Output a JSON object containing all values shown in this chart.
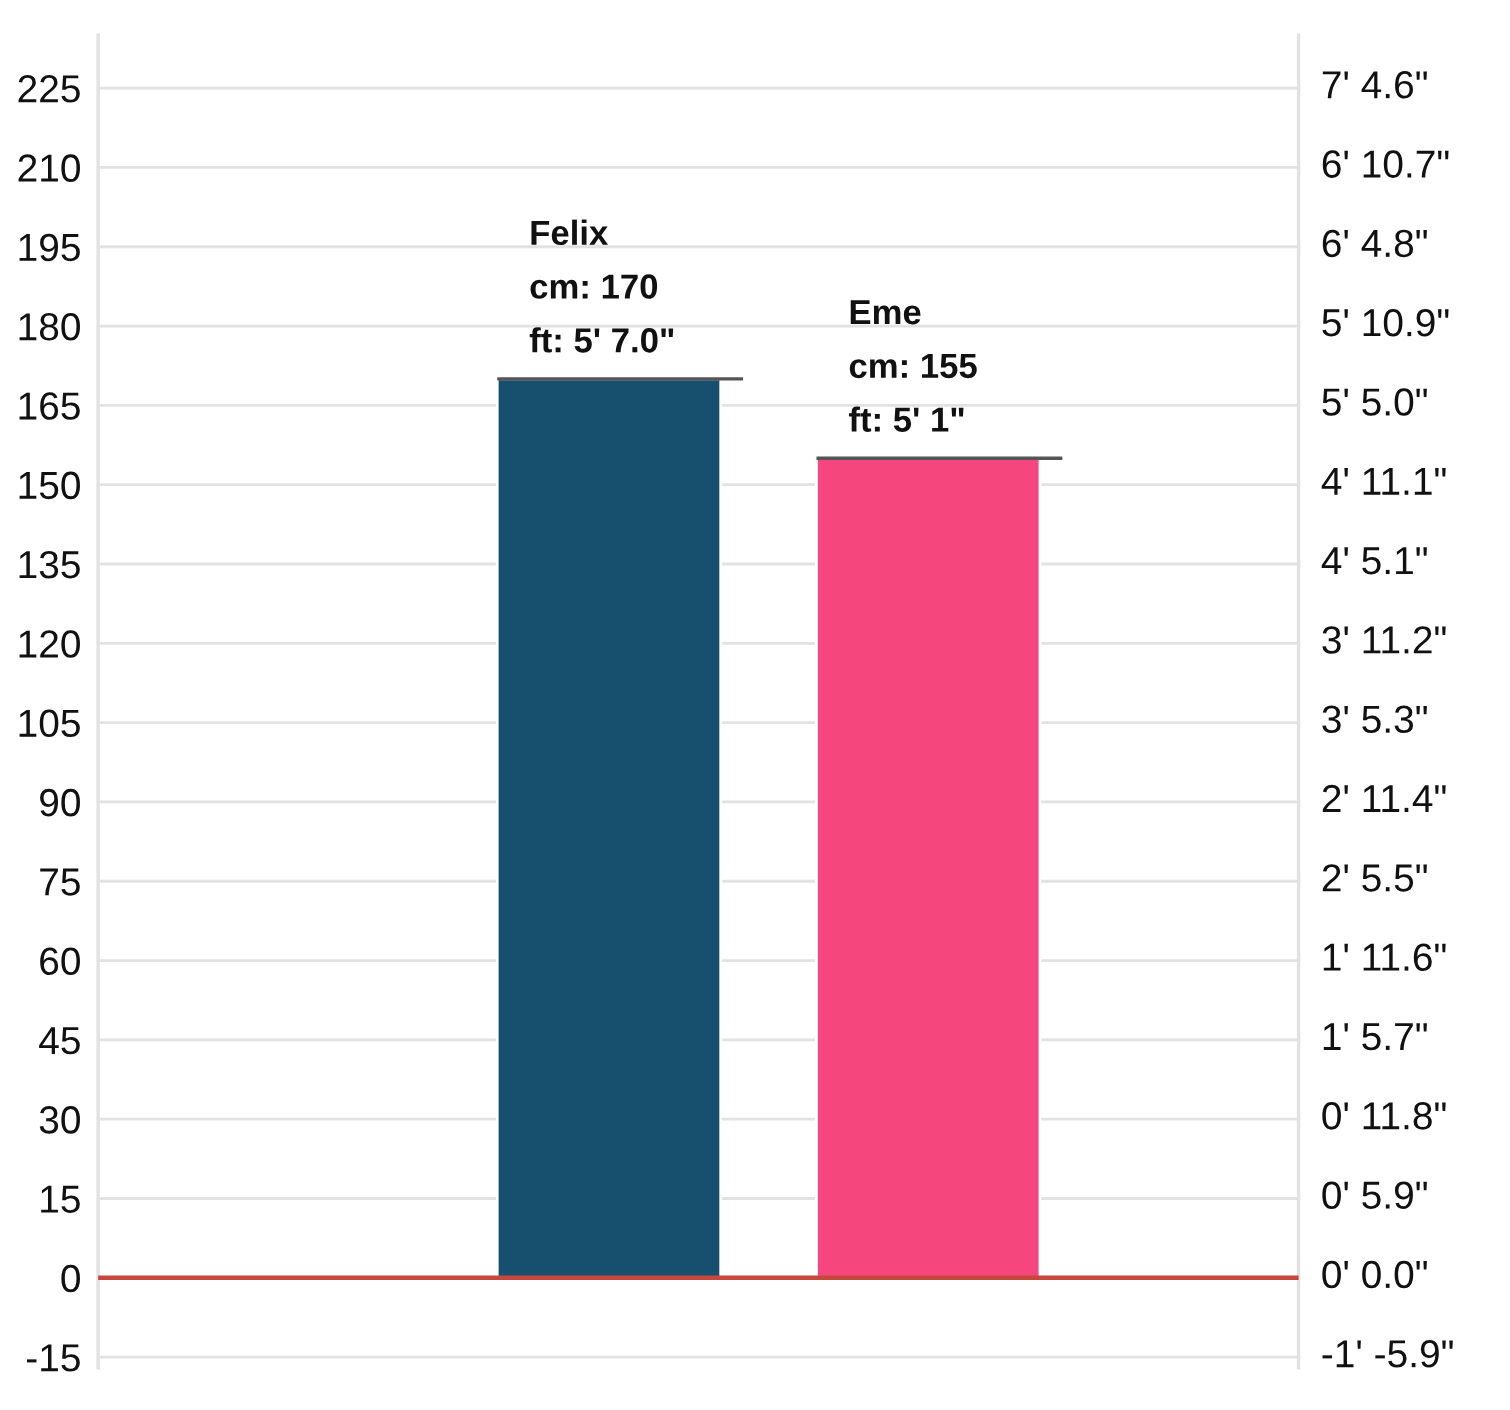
{
  "chart_data": {
    "type": "bar",
    "categories": [
      "Felix",
      "Eme"
    ],
    "values": [
      170,
      155
    ],
    "colors": [
      "#174f6f",
      "#f5477e"
    ],
    "value_labels": [
      "cm: 170\nft: 5' 7.0\"",
      "cm: 155\nft: 5' 1\""
    ],
    "ylim": [
      -17,
      235
    ],
    "yticks": [
      225,
      210,
      195,
      180,
      165,
      150,
      135,
      120,
      105,
      90,
      75,
      60,
      45,
      30,
      15,
      0,
      -15
    ],
    "annotations": [
      "7' 4.6\"",
      "6' 10.7\"",
      "6' 4.8\"",
      "5' 10.9\"",
      "5' 5.0\"",
      "4' 11.1\"",
      "4' 5.1\"",
      "3' 11.2\"",
      "3' 5.3\"",
      "2' 11.4\"",
      "2' 5.5\"",
      "1' 11.6\"",
      "1' 5.7\"",
      "0' 11.8\"",
      "0' 5.9\"",
      "0' 0.0\"",
      "-1' -5.9\""
    ],
    "grid": "y",
    "ref_lines": [
      {
        "axis": "y",
        "value": 0,
        "color": "#c8473d"
      }
    ]
  }
}
